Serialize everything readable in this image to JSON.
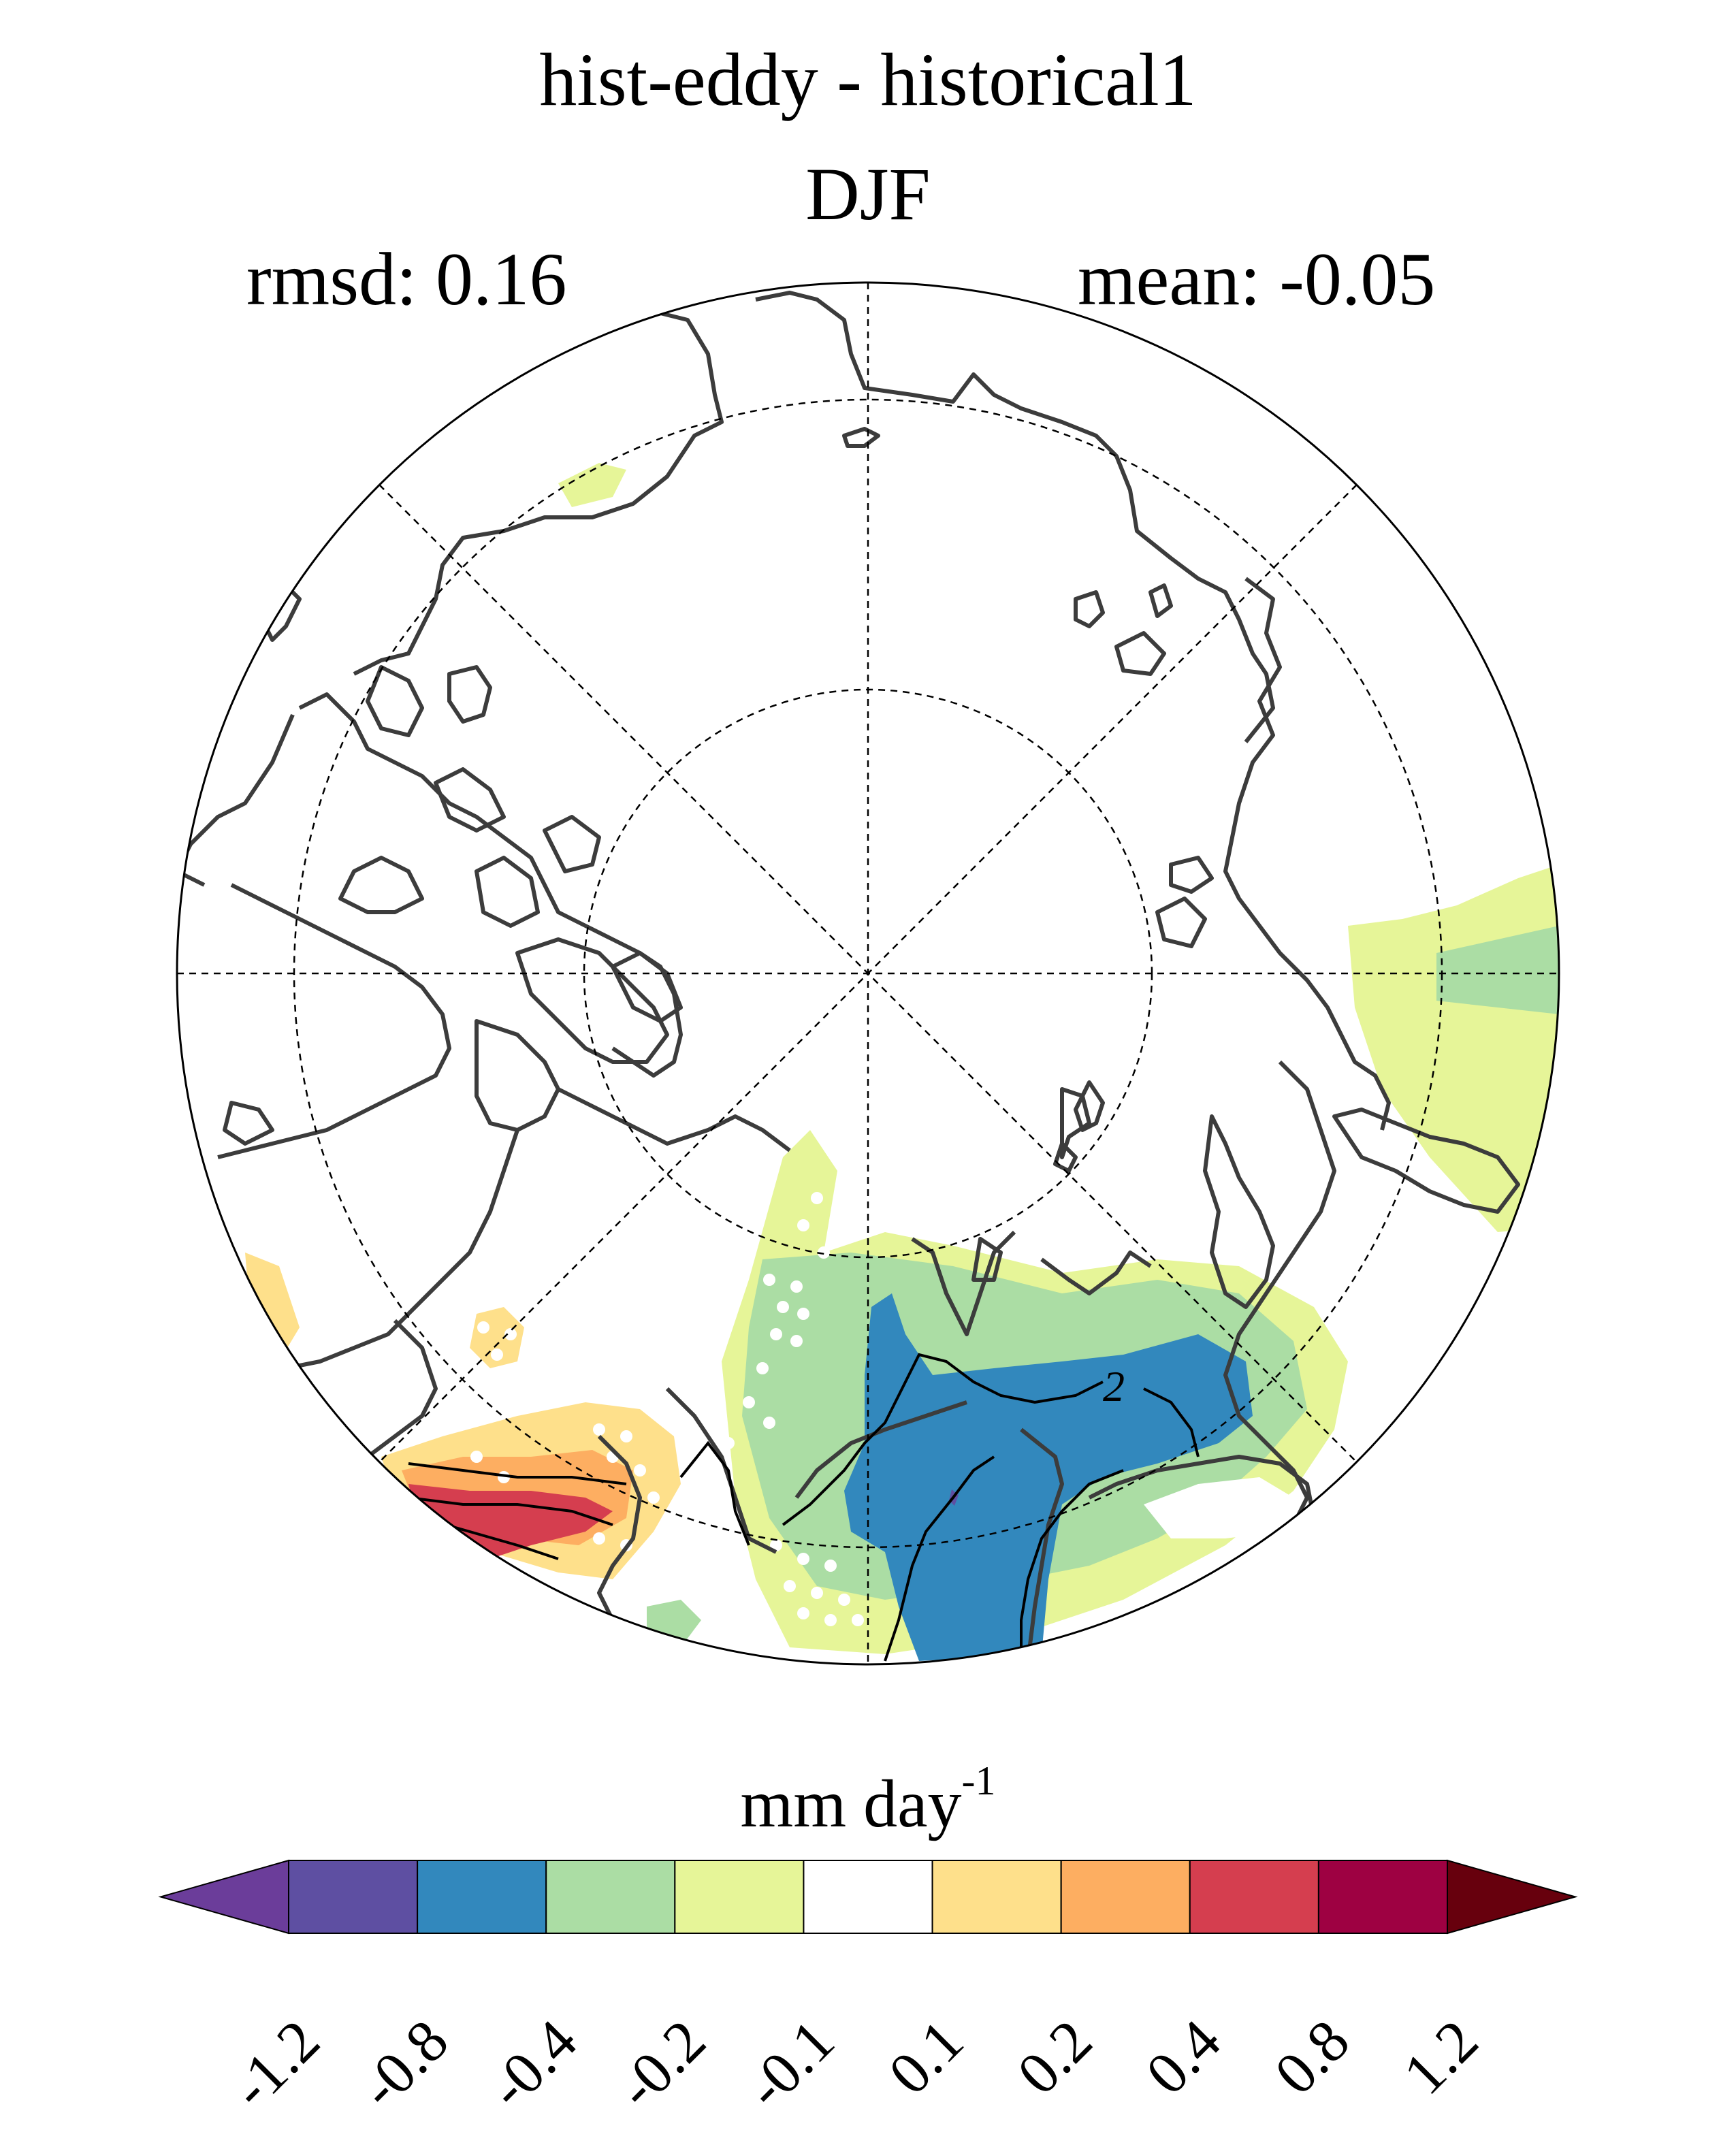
{
  "title": "hist-eddy - historical1",
  "season": "DJF",
  "rmsd_label": "rmsd: 0.16",
  "mean_label": "mean: -0.05",
  "contour_label": "2",
  "colorbar": {
    "unit": "mm day",
    "unit_exponent": "-1",
    "ticks": [
      "-1.2",
      "-0.8",
      "-0.4",
      "-0.2",
      "-0.1",
      "0.1",
      "0.2",
      "0.4",
      "0.8",
      "1.2"
    ],
    "colors": [
      "#6b3d9a",
      "#5e4fa2",
      "#3288bd",
      "#abdda4",
      "#e6f598",
      "#ffffff",
      "#fee08b",
      "#fdae61",
      "#d53e4f",
      "#9e0142",
      "#67000d"
    ]
  },
  "map": {
    "projection": "north polar stereographic",
    "stippling": "white dots mark significant regions"
  }
}
